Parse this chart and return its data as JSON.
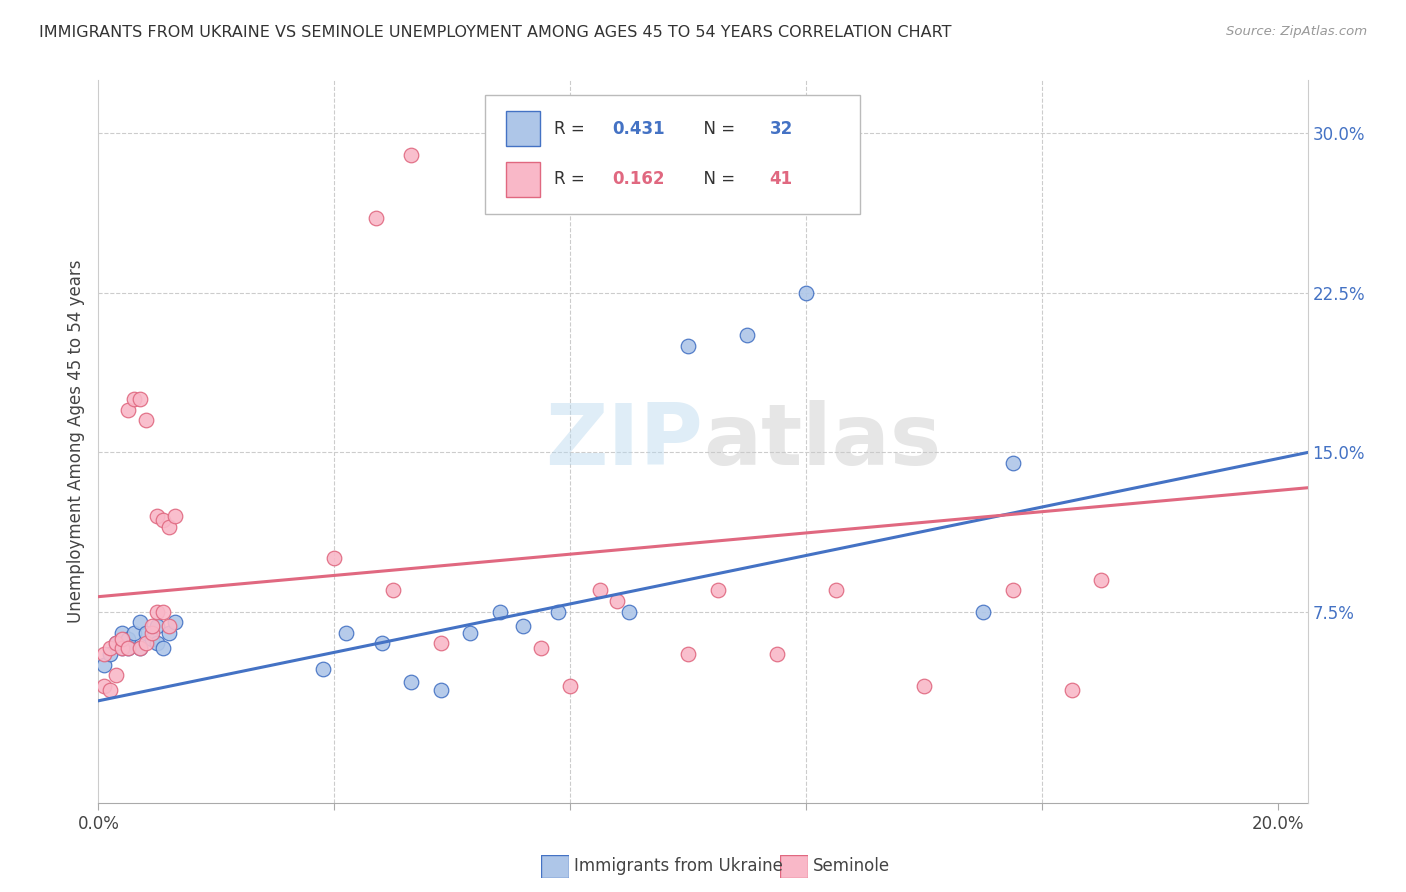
{
  "title": "IMMIGRANTS FROM UKRAINE VS SEMINOLE UNEMPLOYMENT AMONG AGES 45 TO 54 YEARS CORRELATION CHART",
  "source": "Source: ZipAtlas.com",
  "ylabel": "Unemployment Among Ages 45 to 54 years",
  "xlim": [
    0.0,
    0.205
  ],
  "ylim": [
    -0.015,
    0.325
  ],
  "yticks_right": [
    0.075,
    0.15,
    0.225,
    0.3
  ],
  "ytick_labels_right": [
    "7.5%",
    "15.0%",
    "22.5%",
    "30.0%"
  ],
  "series1_color": "#aec6e8",
  "series2_color": "#f9b8c8",
  "line1_color": "#4472c4",
  "line2_color": "#e06880",
  "legend_r1": "0.431",
  "legend_n1": "32",
  "legend_r2": "0.162",
  "legend_n2": "41",
  "ukraine_x": [
    0.001,
    0.002,
    0.003,
    0.004,
    0.004,
    0.005,
    0.005,
    0.006,
    0.007,
    0.007,
    0.008,
    0.009,
    0.01,
    0.01,
    0.011,
    0.012,
    0.013,
    0.038,
    0.042,
    0.048,
    0.053,
    0.058,
    0.063,
    0.068,
    0.072,
    0.078,
    0.09,
    0.1,
    0.11,
    0.12,
    0.15,
    0.155
  ],
  "ukraine_y": [
    0.05,
    0.055,
    0.06,
    0.058,
    0.065,
    0.062,
    0.058,
    0.065,
    0.07,
    0.058,
    0.065,
    0.062,
    0.068,
    0.06,
    0.058,
    0.065,
    0.07,
    0.048,
    0.065,
    0.06,
    0.042,
    0.038,
    0.065,
    0.075,
    0.068,
    0.075,
    0.075,
    0.2,
    0.205,
    0.225,
    0.075,
    0.145
  ],
  "seminole_x": [
    0.001,
    0.001,
    0.002,
    0.002,
    0.003,
    0.003,
    0.004,
    0.004,
    0.005,
    0.005,
    0.006,
    0.007,
    0.007,
    0.008,
    0.008,
    0.009,
    0.009,
    0.01,
    0.01,
    0.011,
    0.011,
    0.012,
    0.012,
    0.013,
    0.04,
    0.047,
    0.05,
    0.053,
    0.058,
    0.075,
    0.08,
    0.085,
    0.088,
    0.1,
    0.105,
    0.115,
    0.125,
    0.14,
    0.155,
    0.165,
    0.17
  ],
  "seminole_y": [
    0.055,
    0.04,
    0.058,
    0.038,
    0.06,
    0.045,
    0.058,
    0.062,
    0.058,
    0.17,
    0.175,
    0.058,
    0.175,
    0.165,
    0.06,
    0.065,
    0.068,
    0.075,
    0.12,
    0.075,
    0.118,
    0.068,
    0.115,
    0.12,
    0.1,
    0.26,
    0.085,
    0.29,
    0.06,
    0.058,
    0.04,
    0.085,
    0.08,
    0.055,
    0.085,
    0.055,
    0.085,
    0.04,
    0.085,
    0.038,
    0.09
  ]
}
